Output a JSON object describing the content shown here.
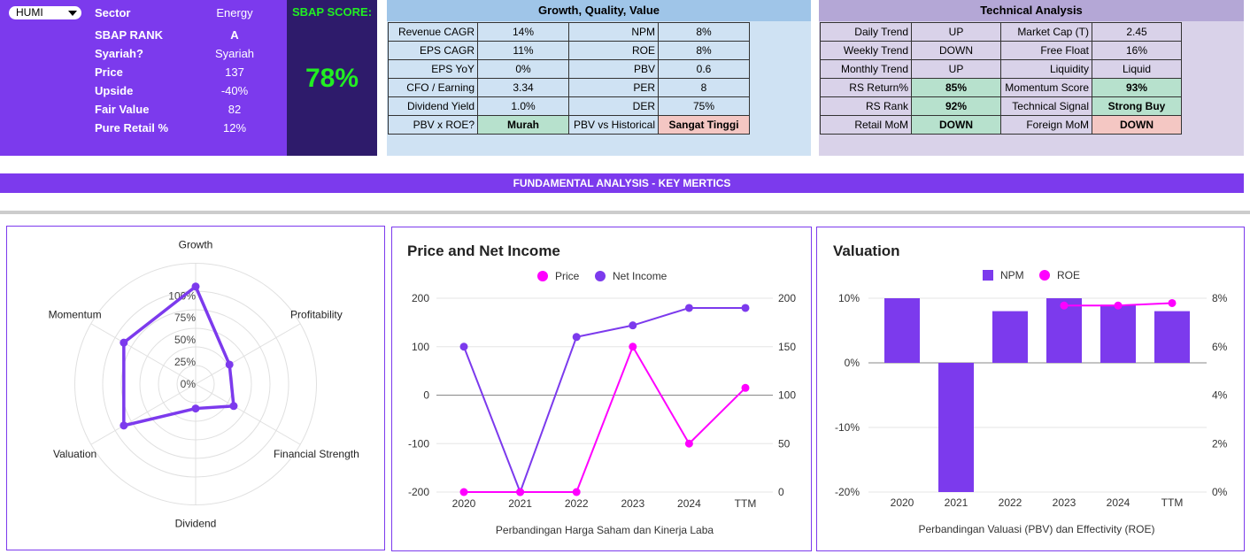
{
  "info": {
    "ticker": "HUMI",
    "rows": [
      {
        "label": "Sector",
        "value": "Energy"
      },
      {
        "label": "SBAP RANK",
        "value": "A"
      },
      {
        "label": "Syariah?",
        "value": "Syariah"
      },
      {
        "label": "Price",
        "value": "137"
      },
      {
        "label": "Upside",
        "value": "-40%"
      },
      {
        "label": "Fair Value",
        "value": "82"
      },
      {
        "label": "Pure Retail %",
        "value": "12%"
      }
    ],
    "score_title": "SBAP SCORE:",
    "score_value": "78%"
  },
  "gqv": {
    "title": "Growth, Quality, Value",
    "rows": [
      [
        "Revenue CAGR",
        "14%",
        "NPM",
        "8%"
      ],
      [
        "EPS CAGR",
        "11%",
        "ROE",
        "8%"
      ],
      [
        "EPS YoY",
        "0%",
        "PBV",
        "0.6"
      ],
      [
        "CFO / Earning",
        "3.34",
        "PER",
        "8"
      ],
      [
        "Dividend Yield",
        "1.0%",
        "DER",
        "75%"
      ],
      [
        "PBV x ROE?",
        "Murah",
        "PBV vs Historical",
        "Sangat Tinggi"
      ]
    ]
  },
  "ta": {
    "title": "Technical Analysis",
    "rows": [
      [
        "Daily Trend",
        "UP",
        "Market Cap (T)",
        "2.45"
      ],
      [
        "Weekly Trend",
        "DOWN",
        "Free Float",
        "16%"
      ],
      [
        "Monthly Trend",
        "UP",
        "Liquidity",
        "Liquid"
      ],
      [
        "RS Return%",
        "85%",
        "Momentum Score",
        "93%"
      ],
      [
        "RS Rank",
        "92%",
        "Technical Signal",
        "Strong Buy"
      ],
      [
        "Retail MoM",
        "DOWN",
        "Foreign MoM",
        "DOWN"
      ]
    ]
  },
  "fundamental_bar": "FUNDAMENTAL ANALYSIS - KEY MERTICS",
  "colors": {
    "purple": "#7c3aed",
    "magenta": "#ff00ff",
    "good": "#b7e1cd",
    "bad": "#f4c7c3"
  },
  "chart_data": [
    {
      "type": "radar",
      "title": "",
      "axes": [
        "Growth",
        "Profitability",
        "Financial Strength",
        "Dividend",
        "Valuation",
        "Momentum"
      ],
      "ticks": [
        "100%",
        "75%",
        "50%",
        "25%",
        "0%"
      ],
      "values": [
        100,
        40,
        45,
        25,
        85,
        85
      ],
      "ylim": [
        0,
        100
      ]
    },
    {
      "type": "line",
      "title": "Price and Net Income",
      "xlabel": "Perbandingan Harga Saham dan Kinerja Laba",
      "categories": [
        "2020",
        "2021",
        "2022",
        "2023",
        "2024",
        "TTM"
      ],
      "series": [
        {
          "name": "Price",
          "axis": "left",
          "values": [
            -200,
            -200,
            -200,
            100,
            -100,
            15
          ]
        },
        {
          "name": "Net Income",
          "axis": "right",
          "values": [
            150,
            0,
            160,
            172,
            190,
            190
          ]
        }
      ],
      "left_ticks": [
        "200",
        "100",
        "0",
        "-100",
        "-200"
      ],
      "right_ticks": [
        "200",
        "150",
        "100",
        "50",
        "0"
      ],
      "ylim_left": [
        -200,
        200
      ],
      "ylim_right": [
        0,
        200
      ],
      "legend": "top"
    },
    {
      "type": "bar",
      "title": "Valuation",
      "xlabel": "Perbandingan Valuasi (PBV) dan Effectivity (ROE)",
      "categories": [
        "2020",
        "2021",
        "2022",
        "2023",
        "2024",
        "TTM"
      ],
      "series": [
        {
          "name": "NPM",
          "type": "bar",
          "axis": "left",
          "values": [
            10,
            -20,
            8,
            10,
            9,
            8
          ]
        },
        {
          "name": "ROE",
          "type": "line",
          "axis": "right",
          "values": [
            null,
            null,
            null,
            7.7,
            7.7,
            7.8
          ]
        }
      ],
      "left_ticks": [
        "10%",
        "0%",
        "-10%",
        "-20%"
      ],
      "right_ticks": [
        "8%",
        "6%",
        "4%",
        "2%",
        "0%"
      ],
      "ylim_left": [
        -20,
        10
      ],
      "ylim_right": [
        0,
        8
      ],
      "legend": "top"
    }
  ]
}
